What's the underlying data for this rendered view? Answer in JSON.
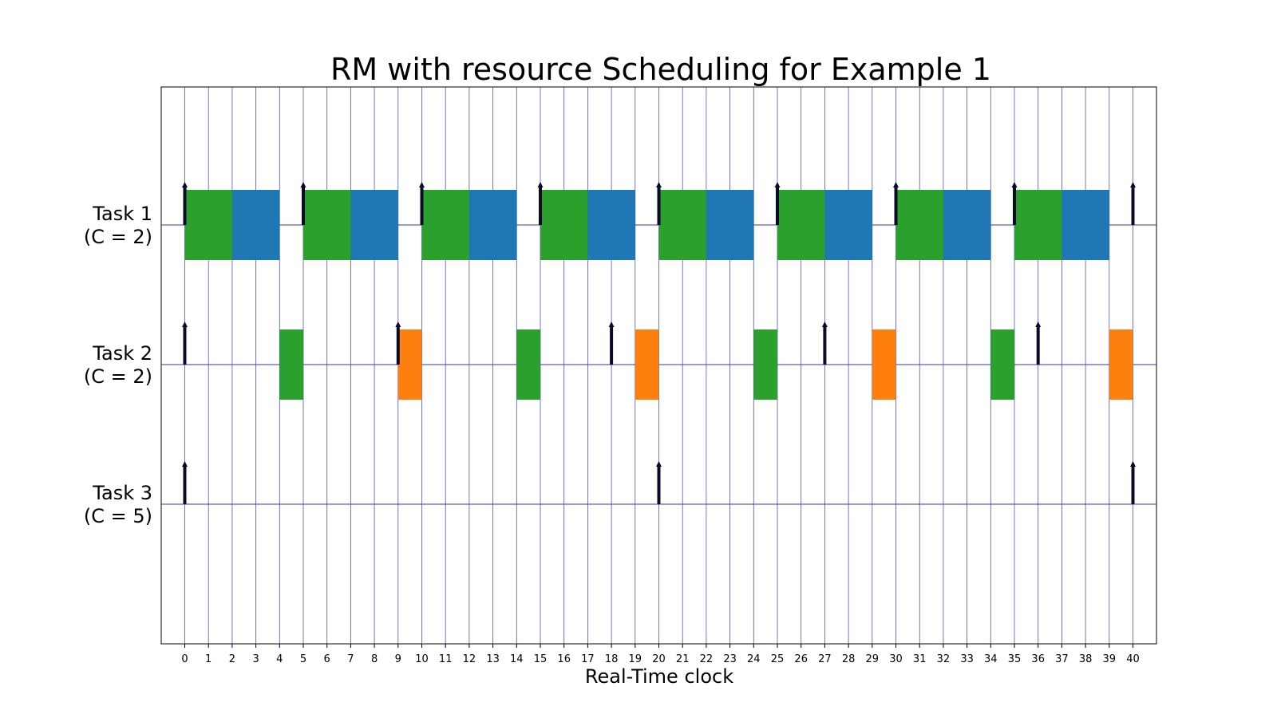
{
  "chart_data": {
    "type": "gantt",
    "title": "RM with resource Scheduling for Example 1",
    "xlabel": "Real-Time clock",
    "xlim": [
      -1,
      41
    ],
    "x_ticks": [
      0,
      1,
      2,
      3,
      4,
      5,
      6,
      7,
      8,
      9,
      10,
      11,
      12,
      13,
      14,
      15,
      16,
      17,
      18,
      19,
      20,
      21,
      22,
      23,
      24,
      25,
      26,
      27,
      28,
      29,
      30,
      31,
      32,
      33,
      34,
      35,
      36,
      37,
      38,
      39,
      40
    ],
    "grid": "vertical lines at each integer tick",
    "colors": {
      "green": "#2ca02c",
      "blue": "#1f77b4",
      "orange": "#ff7f0e",
      "arrow": "#0a0a2a",
      "grid": "#3333bb",
      "baseline": "#3333bb"
    },
    "tasks": [
      {
        "label_line1": "Task 1",
        "label_line2": "(C = 2)",
        "releases": [
          0,
          5,
          10,
          15,
          20,
          25,
          30,
          35,
          40
        ],
        "segments": [
          {
            "start": 0,
            "end": 2,
            "color": "green"
          },
          {
            "start": 2,
            "end": 4,
            "color": "blue"
          },
          {
            "start": 5,
            "end": 7,
            "color": "green"
          },
          {
            "start": 7,
            "end": 9,
            "color": "blue"
          },
          {
            "start": 10,
            "end": 12,
            "color": "green"
          },
          {
            "start": 12,
            "end": 14,
            "color": "blue"
          },
          {
            "start": 15,
            "end": 17,
            "color": "green"
          },
          {
            "start": 17,
            "end": 19,
            "color": "blue"
          },
          {
            "start": 20,
            "end": 22,
            "color": "green"
          },
          {
            "start": 22,
            "end": 24,
            "color": "blue"
          },
          {
            "start": 25,
            "end": 27,
            "color": "green"
          },
          {
            "start": 27,
            "end": 29,
            "color": "blue"
          },
          {
            "start": 30,
            "end": 32,
            "color": "green"
          },
          {
            "start": 32,
            "end": 34,
            "color": "blue"
          },
          {
            "start": 35,
            "end": 37,
            "color": "green"
          },
          {
            "start": 37,
            "end": 39,
            "color": "blue"
          }
        ]
      },
      {
        "label_line1": "Task 2",
        "label_line2": "(C = 2)",
        "releases": [
          0,
          9,
          18,
          27,
          36
        ],
        "segments": [
          {
            "start": 4,
            "end": 5,
            "color": "green"
          },
          {
            "start": 9,
            "end": 10,
            "color": "orange"
          },
          {
            "start": 14,
            "end": 15,
            "color": "green"
          },
          {
            "start": 19,
            "end": 20,
            "color": "orange"
          },
          {
            "start": 24,
            "end": 25,
            "color": "green"
          },
          {
            "start": 29,
            "end": 30,
            "color": "orange"
          },
          {
            "start": 34,
            "end": 35,
            "color": "green"
          },
          {
            "start": 39,
            "end": 40,
            "color": "orange"
          }
        ]
      },
      {
        "label_line1": "Task 3",
        "label_line2": "(C = 5)",
        "releases": [
          0,
          20,
          40
        ],
        "segments": []
      }
    ]
  }
}
